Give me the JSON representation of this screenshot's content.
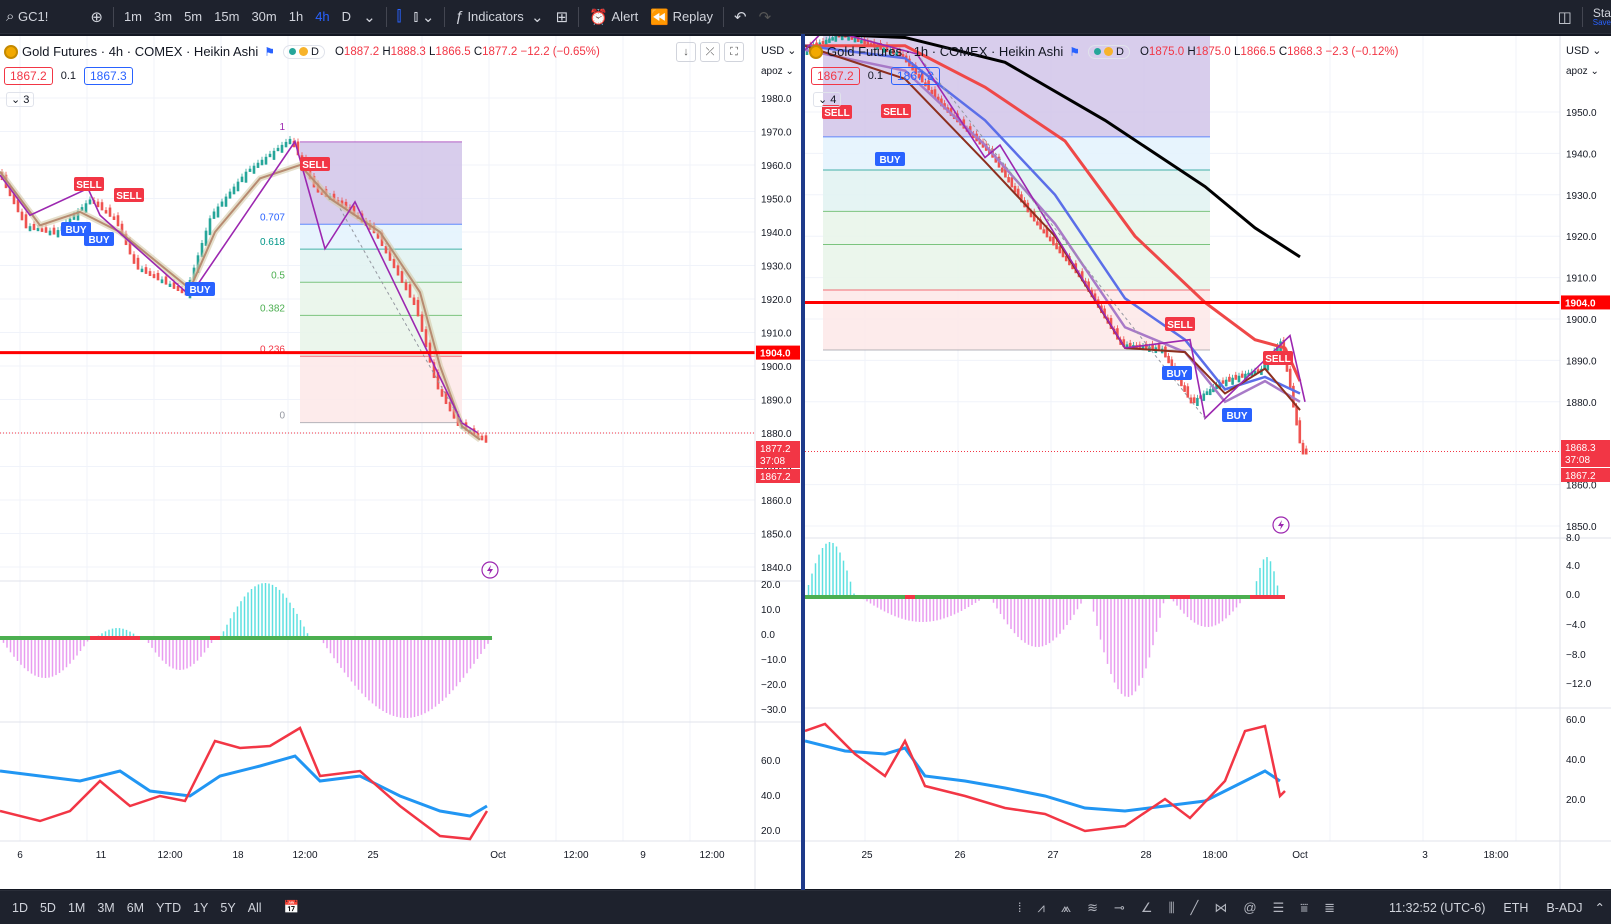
{
  "toolbar": {
    "symbol": "GC1!",
    "intervals": [
      "1m",
      "3m",
      "5m",
      "15m",
      "30m",
      "1h",
      "4h",
      "D"
    ],
    "active_interval": "4h",
    "indicators_label": "Indicators",
    "alert_label": "Alert",
    "replay_label": "Replay",
    "right_label": "Sta",
    "right_sub": "Save"
  },
  "left_chart": {
    "title": "Gold Futures · 4h · COMEX · Heikin Ashi",
    "d_badge": "D",
    "ohlc": {
      "o_label": "O",
      "o": "1887.2",
      "h_label": "H",
      "h": "1888.3",
      "l_label": "L",
      "l": "1866.5",
      "c_label": "C",
      "c": "1877.2",
      "chg": "−12.2 (−0.65%)"
    },
    "sell_price": "1867.2",
    "spread": "0.1",
    "buy_price": "1867.3",
    "indicator_count": "3",
    "currency": "USD",
    "scale_mode": "apoz",
    "price_ticks": [
      "1980.0",
      "1970.0",
      "1960.0",
      "1950.0",
      "1940.0",
      "1930.0",
      "1920.0",
      "1910.0",
      "1900.0",
      "1890.0",
      "1880.0",
      "1870.0",
      "1860.0",
      "1850.0",
      "1840.0"
    ],
    "tick_prices": [
      1980,
      1970,
      1960,
      1950,
      1940,
      1930,
      1920,
      1910,
      1900,
      1890,
      1880,
      1870,
      1860,
      1850,
      1840
    ],
    "line_label": "1904.0",
    "last_label": "1877.2",
    "countdown": "37:08",
    "bid_label": "1867.2",
    "fib_levels": [
      "1",
      "0.707",
      "0.618",
      "0.5",
      "0.382",
      "0.236",
      "0"
    ],
    "fib_prices": [
      1966.9,
      1942.3,
      1934.9,
      1925.0,
      1915.1,
      1902.9,
      1883.1
    ],
    "signals": [
      {
        "label": "SELL",
        "kind": "sell"
      },
      {
        "label": "SELL",
        "kind": "sell"
      },
      {
        "label": "BUY",
        "kind": "buy"
      },
      {
        "label": "BUY",
        "kind": "buy"
      },
      {
        "label": "BUY",
        "kind": "buy"
      },
      {
        "label": "SELL",
        "kind": "sell"
      }
    ],
    "osc_ticks": [
      "20.0",
      "10.0",
      "0.0",
      "−10.0",
      "−20.0",
      "−30.0"
    ],
    "rsi_ticks": [
      "60.0",
      "40.0",
      "20.0"
    ],
    "time_labels": [
      "6",
      "11",
      "12:00",
      "18",
      "12:00",
      "25",
      "Oct",
      "12:00",
      "9",
      "12:00"
    ]
  },
  "right_chart": {
    "title": "Gold Futures · 1h · COMEX · Heikin Ashi",
    "d_badge": "D",
    "ohlc": {
      "o_label": "O",
      "o": "1875.0",
      "h_label": "H",
      "h": "1875.0",
      "l_label": "L",
      "l": "1866.5",
      "c_label": "C",
      "c": "1868.3",
      "chg": "−2.3 (−0.12%)"
    },
    "sell_price": "1867.2",
    "spread": "0.1",
    "buy_price": "1867.3",
    "indicator_count": "4",
    "currency": "USD",
    "scale_mode": "apoz",
    "price_ticks": [
      "1950.0",
      "1940.0",
      "1930.0",
      "1920.0",
      "1910.0",
      "1900.0",
      "1890.0",
      "1880.0",
      "1860.0",
      "1850.0"
    ],
    "tick_prices": [
      1950,
      1940,
      1930,
      1920,
      1910,
      1900,
      1890,
      1880,
      1860,
      1850
    ],
    "line_label": "1904.0",
    "last_label": "1868.3",
    "countdown": "37:08",
    "bid_label": "1867.2",
    "fib_prices": [
      1971.0,
      1944.0,
      1936.0,
      1926.0,
      1918.0,
      1907.0,
      1892.5
    ],
    "signals": [
      {
        "label": "SELL",
        "kind": "sell"
      },
      {
        "label": "SELL",
        "kind": "sell"
      },
      {
        "label": "BUY",
        "kind": "buy"
      },
      {
        "label": "SELL",
        "kind": "sell"
      },
      {
        "label": "BUY",
        "kind": "buy"
      },
      {
        "label": "BUY",
        "kind": "buy"
      },
      {
        "label": "SELL",
        "kind": "sell"
      }
    ],
    "osc_ticks": [
      "8.0",
      "4.0",
      "0.0",
      "−4.0",
      "−8.0",
      "−12.0"
    ],
    "rsi_ticks": [
      "60.0",
      "40.0",
      "20.0"
    ],
    "time_labels": [
      "25",
      "26",
      "27",
      "28",
      "18:00",
      "Oct",
      "3",
      "18:00"
    ]
  },
  "bottom": {
    "ranges": [
      "1D",
      "5D",
      "1M",
      "3M",
      "6M",
      "YTD",
      "1Y",
      "5Y",
      "All"
    ],
    "clock": "11:32:52 (UTC-6)",
    "session": "ETH",
    "adj": "B-ADJ"
  },
  "colors": {
    "sell": "#f23645",
    "buy": "#2962ff",
    "line": "#ff0000",
    "purple": "#9c27b0"
  }
}
